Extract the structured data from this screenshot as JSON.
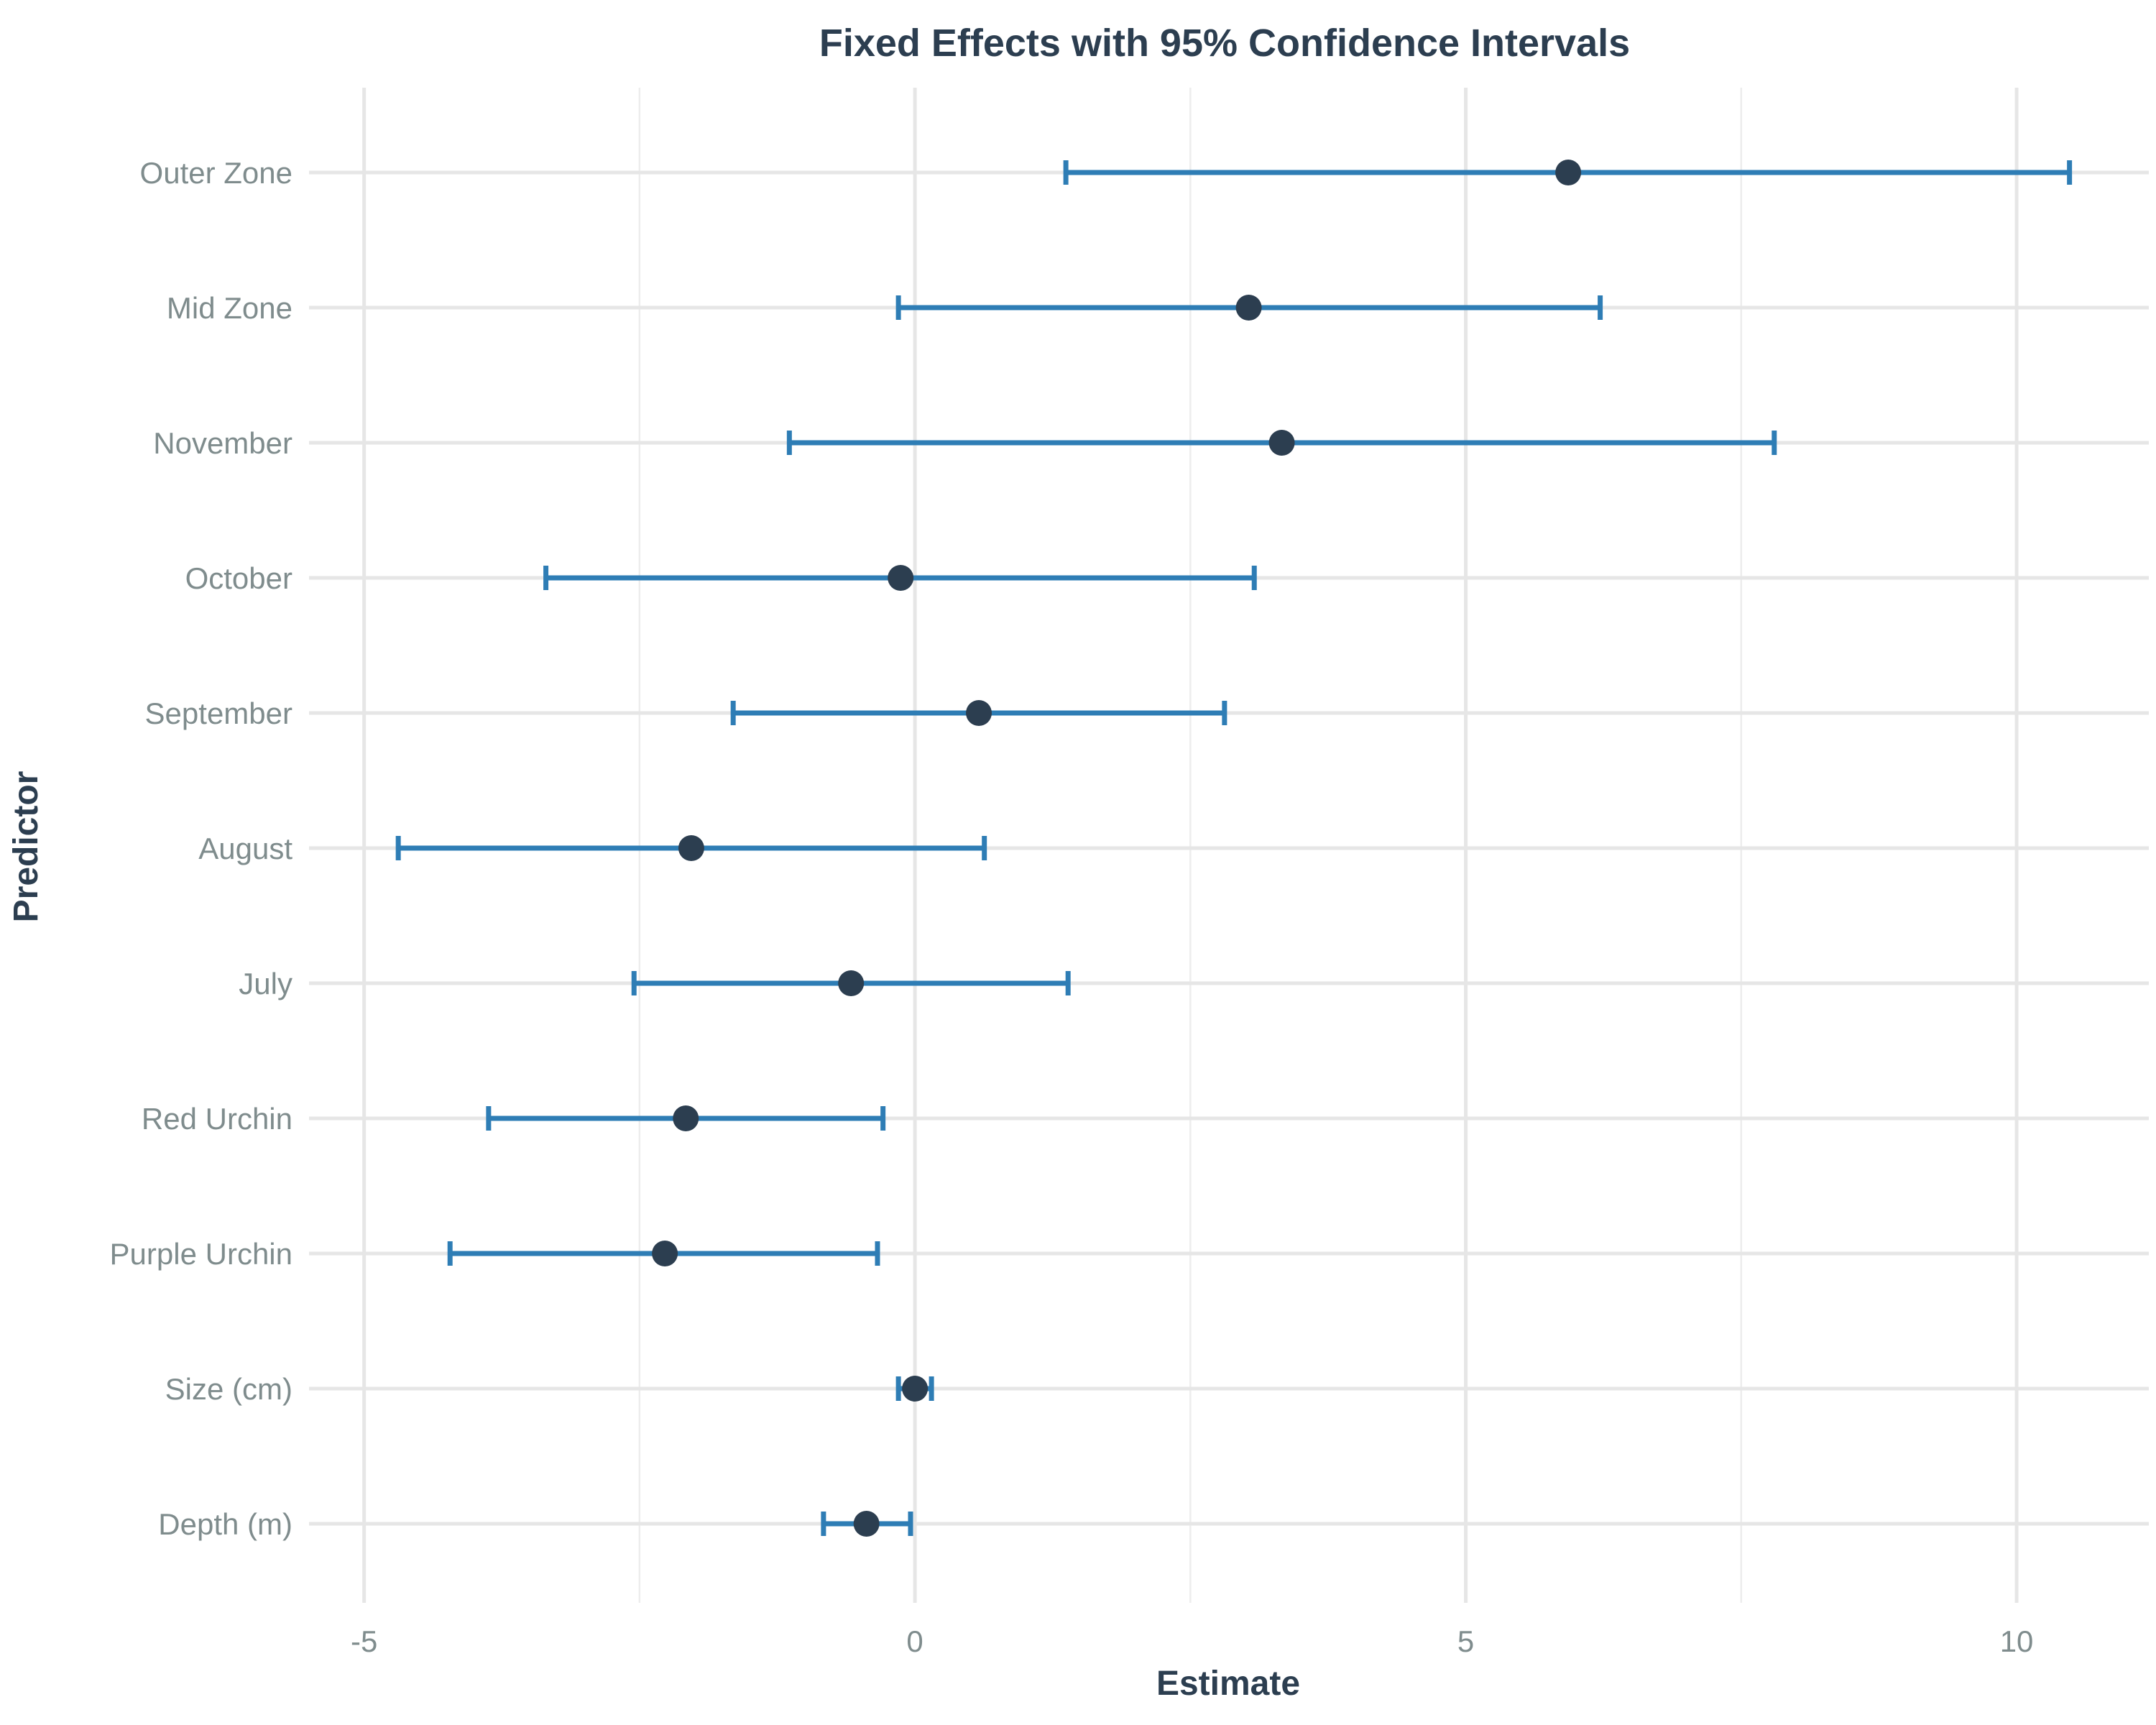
{
  "chart_data": {
    "type": "dot-errorbar",
    "title": "Fixed Effects with 95% Confidence Intervals",
    "xlabel": "Estimate",
    "ylabel": "Predictor",
    "xlim": [
      -5.5,
      11.2
    ],
    "x_ticks": [
      -5,
      0,
      5,
      10
    ],
    "x_tick_labels": [
      "-5",
      "0",
      "5",
      "10"
    ],
    "grid": true,
    "colors": {
      "interval": "#2e7db5",
      "point": "#2c3e50"
    },
    "predictors": [
      {
        "label": "Outer Zone",
        "estimate": 5.93,
        "lower": 1.37,
        "upper": 10.48
      },
      {
        "label": "Mid Zone",
        "estimate": 3.03,
        "lower": -0.15,
        "upper": 6.22
      },
      {
        "label": "November",
        "estimate": 3.33,
        "lower": -1.14,
        "upper": 7.8
      },
      {
        "label": "October",
        "estimate": -0.13,
        "lower": -3.35,
        "upper": 3.08
      },
      {
        "label": "September",
        "estimate": 0.58,
        "lower": -1.65,
        "upper": 2.81
      },
      {
        "label": "August",
        "estimate": -2.03,
        "lower": -4.69,
        "upper": 0.63
      },
      {
        "label": "July",
        "estimate": -0.58,
        "lower": -2.55,
        "upper": 1.39
      },
      {
        "label": "Red Urchin",
        "estimate": -2.08,
        "lower": -3.87,
        "upper": -0.29
      },
      {
        "label": "Purple Urchin",
        "estimate": -2.27,
        "lower": -4.22,
        "upper": -0.34
      },
      {
        "label": "Size (cm)",
        "estimate": 0.0,
        "lower": -0.15,
        "upper": 0.15
      },
      {
        "label": "Depth (m)",
        "estimate": -0.44,
        "lower": -0.83,
        "upper": -0.04
      }
    ]
  }
}
